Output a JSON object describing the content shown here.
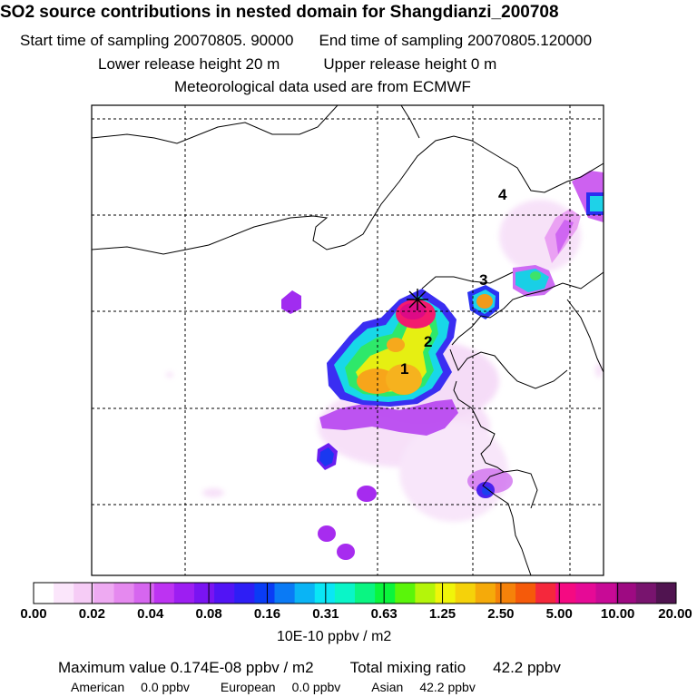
{
  "header": {
    "title": "SO2 source contributions in nested domain for Shangdianzi_200708",
    "start_label": "Start time of sampling 20070805. 90000",
    "end_label": "End time of sampling 20070805.120000",
    "lower_label": "Lower release height   20 m",
    "upper_label": "Upper release height    0 m",
    "met_label": "Meteorological data used are from ECMWF"
  },
  "map": {
    "source_labels": [
      "1",
      "2",
      "3",
      "4"
    ],
    "receptor_marker": "star-marker"
  },
  "colorbar": {
    "ticks": [
      "0.00",
      "0.02",
      "0.04",
      "0.08",
      "0.16",
      "0.31",
      "0.63",
      "1.25",
      "2.50",
      "5.00",
      "10.00",
      "20.00"
    ],
    "units": "10E-10 ppbv / m2",
    "colors": [
      "#ffffff",
      "#fbe6fb",
      "#f6ccf6",
      "#eeaaf2",
      "#e589ef",
      "#d666ef",
      "#bd33f2",
      "#9d1ef2",
      "#7a14f2",
      "#5214f5",
      "#2e1ef5",
      "#0a3cf5",
      "#0a7af5",
      "#0ab4f5",
      "#0ae6f5",
      "#0af5c8",
      "#0af582",
      "#0af53c",
      "#5af50a",
      "#b4f50a",
      "#f0f50a",
      "#f5d20a",
      "#f5aa0a",
      "#f5820a",
      "#f55a0a",
      "#f5283c",
      "#f50a82",
      "#e60a96",
      "#c80a96",
      "#9e0a82",
      "#78146e",
      "#501450"
    ]
  },
  "stats": {
    "max_label": "Maximum value  0.174E-08 ppbv / m2",
    "total_label": "Total mixing ratio",
    "total_value": "42.2 ppbv",
    "american_label": "American",
    "american_value": "0.0 ppbv",
    "european_label": "European",
    "european_value": "0.0 ppbv",
    "asian_label": "Asian",
    "asian_value": "42.2 ppbv"
  }
}
